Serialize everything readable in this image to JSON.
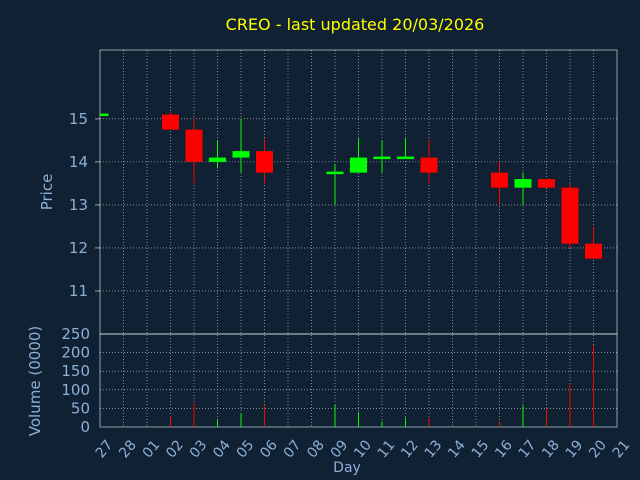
{
  "title": "CREO - last updated 20/03/2026",
  "colors": {
    "background": "#0f2133",
    "plot_frame": "#ffffff",
    "grid": "#ffffff",
    "title": "#ffff00",
    "axis_text": "#8fb0d6",
    "up": "#00ff00",
    "down": "#ff0000"
  },
  "chart_data": [
    {
      "type": "candlestick",
      "ylabel": "Price",
      "ylim": [
        10,
        16.6
      ],
      "yticks": [
        11,
        12,
        13,
        14,
        15
      ],
      "grid": true,
      "days": [
        "27",
        "28",
        "01",
        "02",
        "03",
        "04",
        "05",
        "06",
        "07",
        "08",
        "09",
        "10",
        "11",
        "12",
        "13",
        "14",
        "15",
        "16",
        "17",
        "18",
        "19",
        "20",
        "21"
      ],
      "candles": [
        {
          "day": "27",
          "open": 15.1,
          "high": 15.1,
          "low": 15.1,
          "close": 15.1
        },
        {
          "day": "02",
          "open": 15.1,
          "high": 15.15,
          "low": 14.75,
          "close": 14.75
        },
        {
          "day": "03",
          "open": 14.75,
          "high": 15.0,
          "low": 13.5,
          "close": 14.0
        },
        {
          "day": "04",
          "open": 14.0,
          "high": 14.5,
          "low": 13.85,
          "close": 14.1
        },
        {
          "day": "05",
          "open": 14.1,
          "high": 15.0,
          "low": 13.75,
          "close": 14.25
        },
        {
          "day": "06",
          "open": 14.25,
          "high": 14.55,
          "low": 13.5,
          "close": 13.75
        },
        {
          "day": "09",
          "open": 13.7,
          "high": 13.95,
          "low": 13.0,
          "close": 13.75
        },
        {
          "day": "10",
          "open": 13.75,
          "high": 14.55,
          "low": 13.75,
          "close": 14.1
        },
        {
          "day": "11",
          "open": 14.1,
          "high": 14.5,
          "low": 13.75,
          "close": 14.1
        },
        {
          "day": "12",
          "open": 14.1,
          "high": 14.55,
          "low": 14.1,
          "close": 14.1
        },
        {
          "day": "13",
          "open": 14.1,
          "high": 14.5,
          "low": 13.5,
          "close": 13.75
        },
        {
          "day": "16",
          "open": 13.75,
          "high": 14.0,
          "low": 13.0,
          "close": 13.4
        },
        {
          "day": "17",
          "open": 13.4,
          "high": 13.75,
          "low": 13.0,
          "close": 13.6
        },
        {
          "day": "18",
          "open": 13.6,
          "high": 13.6,
          "low": 13.4,
          "close": 13.4
        },
        {
          "day": "19",
          "open": 13.4,
          "high": 13.5,
          "low": 12.0,
          "close": 12.1
        },
        {
          "day": "20",
          "open": 12.1,
          "high": 12.5,
          "low": 11.75,
          "close": 11.75
        }
      ]
    },
    {
      "type": "bar",
      "ylabel": "Volume (0000)",
      "xlabel": "Day",
      "ylim": [
        0,
        250
      ],
      "yticks": [
        0,
        50,
        100,
        150,
        200,
        250
      ],
      "grid": true,
      "volumes": [
        {
          "day": "02",
          "value": 28,
          "dir": "down"
        },
        {
          "day": "03",
          "value": 65,
          "dir": "down"
        },
        {
          "day": "04",
          "value": 20,
          "dir": "up"
        },
        {
          "day": "05",
          "value": 35,
          "dir": "up"
        },
        {
          "day": "06",
          "value": 60,
          "dir": "down"
        },
        {
          "day": "09",
          "value": 60,
          "dir": "up"
        },
        {
          "day": "10",
          "value": 40,
          "dir": "up"
        },
        {
          "day": "11",
          "value": 15,
          "dir": "up"
        },
        {
          "day": "12",
          "value": 25,
          "dir": "up"
        },
        {
          "day": "13",
          "value": 25,
          "dir": "down"
        },
        {
          "day": "16",
          "value": 15,
          "dir": "down"
        },
        {
          "day": "17",
          "value": 58,
          "dir": "up"
        },
        {
          "day": "18",
          "value": 50,
          "dir": "down"
        },
        {
          "day": "19",
          "value": 115,
          "dir": "down"
        },
        {
          "day": "20",
          "value": 220,
          "dir": "down"
        }
      ]
    }
  ]
}
